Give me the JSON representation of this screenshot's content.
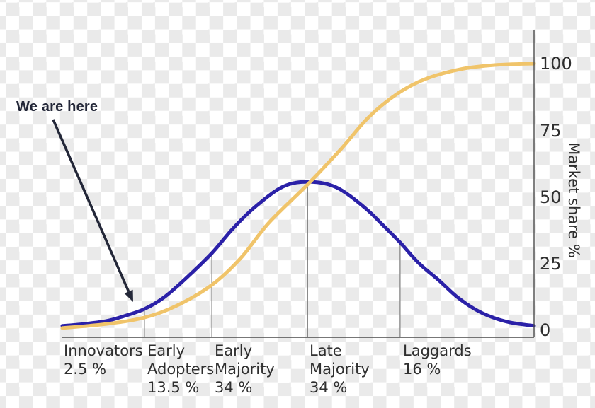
{
  "annotation": {
    "label": "We are here"
  },
  "y_axis": {
    "title": "Market share %",
    "ticks": [
      "100",
      "75",
      "50",
      "25",
      "0"
    ]
  },
  "segments": [
    {
      "name": "innovators",
      "lines": [
        "Innovators",
        "2.5 %"
      ]
    },
    {
      "name": "early-adopters",
      "lines": [
        "Early",
        "Adopters",
        "13.5 %"
      ]
    },
    {
      "name": "early-majority",
      "lines": [
        "Early",
        "Majority",
        "34 %"
      ]
    },
    {
      "name": "late-majority",
      "lines": [
        "Late",
        "Majority",
        "34 %"
      ]
    },
    {
      "name": "laggards",
      "lines": [
        "Laggards",
        "16 %"
      ]
    }
  ],
  "colors": {
    "bell_curve": "#2b21a8",
    "s_curve": "#f0c46a",
    "axis": "#4a4a4a",
    "divider": "#7d7d7d",
    "text": "#2f2f2f",
    "annotation": "#232738",
    "checker": "#eaeaea"
  },
  "chart_data": {
    "type": "line",
    "title": "Diffusion of innovation: adopter categories (bell curve) and cumulative market share (S-curve)",
    "xlabel": "",
    "ylabel": "Market share %",
    "ylim": [
      0,
      100
    ],
    "grid": false,
    "legend": "none",
    "y_ticks": [
      0,
      25,
      50,
      75,
      100
    ],
    "series": [
      {
        "name": "new-adopters-bell-curve",
        "color": "#2b21a8",
        "x": [
          0,
          4.5,
          9.3,
          13,
          17.4,
          21.5,
          25.8,
          31.7,
          36,
          40.8,
          46.8,
          52.4,
          58.1,
          64,
          68,
          71.6,
          75.5,
          79.9,
          83.5,
          87.4,
          91,
          94.9,
          100
        ],
        "y": [
          1.9,
          2.6,
          3.7,
          5.5,
          8.2,
          12.5,
          19,
          29.1,
          38,
          46.3,
          54,
          55.8,
          53.7,
          46.3,
          39.5,
          33.1,
          25.5,
          18.8,
          13,
          8.2,
          5.2,
          3.2,
          1.9
        ]
      },
      {
        "name": "market-share-s-curve",
        "color": "#f0c46a",
        "x": [
          0,
          9.3,
          17.4,
          24.3,
          31.7,
          37.8,
          43.8,
          52,
          58.9,
          64.9,
          70.9,
          76.9,
          84.4,
          91.9,
          100
        ],
        "y": [
          1.1,
          2.6,
          5,
          9.5,
          17.2,
          27.2,
          40.5,
          54.8,
          67.7,
          79.9,
          88.6,
          94.2,
          97.9,
          99.5,
          100
        ]
      }
    ],
    "segment_boundaries_x_pct": [
      17.4,
      31.7,
      52.0,
      71.6
    ],
    "annotation_points_to": "lower-left part of bell curve (Innovators / Early Adopters boundary)"
  }
}
